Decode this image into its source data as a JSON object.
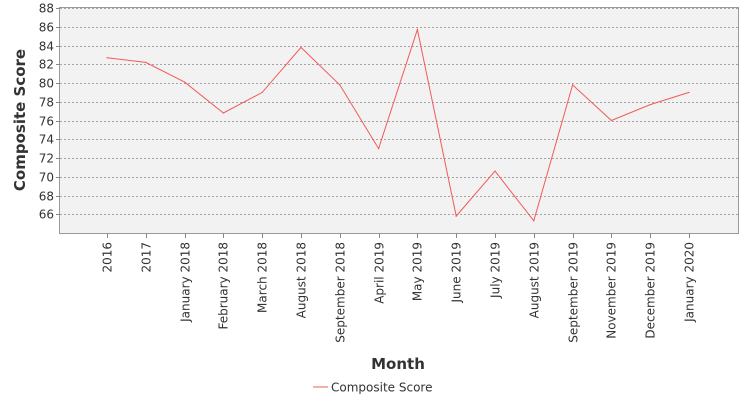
{
  "chart_data": {
    "type": "line",
    "categories": [
      "2016",
      "2017",
      "January 2018",
      "February 2018",
      "March 2018",
      "August 2018",
      "September 2018",
      "April 2019",
      "May 2019",
      "June 2019",
      "July 2019",
      "August 2019",
      "September 2019",
      "November 2019",
      "December 2019",
      "January 2020"
    ],
    "series": [
      {
        "name": "Composite Score",
        "values": [
          82.7,
          82.2,
          80.1,
          76.8,
          79.0,
          83.8,
          79.8,
          73.0,
          85.7,
          65.8,
          70.6,
          65.3,
          79.8,
          76.0,
          77.7,
          79.0
        ]
      }
    ],
    "xlabel": "Month",
    "ylabel": "Composite Score",
    "ylim": [
      64,
      88
    ],
    "yticks": [
      66,
      68,
      70,
      72,
      74,
      76,
      78,
      80,
      82,
      84,
      86,
      88
    ],
    "grid": true,
    "legend_position": "bottom-center",
    "colors": {
      "series": "#f25a5a",
      "plot_background": "#f2f2f2",
      "grid": "#555555"
    }
  }
}
